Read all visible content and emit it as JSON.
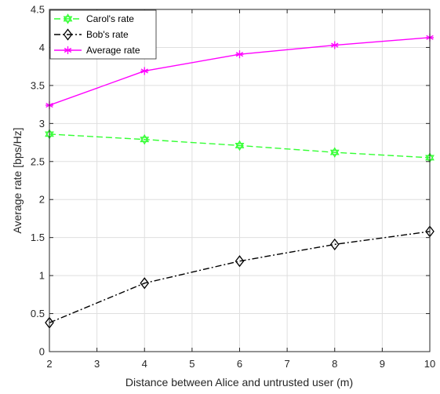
{
  "chart_data": {
    "type": "line",
    "title": "",
    "xlabel": "Distance between Alice and untrusted user (m)",
    "ylabel": "Average rate [bps/Hz]",
    "xlim": [
      2,
      10
    ],
    "ylim": [
      0,
      4.5
    ],
    "xticks": [
      "2",
      "3",
      "4",
      "5",
      "6",
      "7",
      "8",
      "9",
      "10"
    ],
    "yticks": [
      "0",
      "0.5",
      "1",
      "1.5",
      "2",
      "2.5",
      "3",
      "3.5",
      "4",
      "4.5"
    ],
    "grid": true,
    "legend_position": "top-left",
    "x": [
      2,
      4,
      6,
      8,
      10
    ],
    "series": [
      {
        "name": "Carol's rate",
        "values": [
          2.86,
          2.79,
          2.71,
          2.62,
          2.55
        ],
        "color": "#33ff33",
        "line_style": "dashed",
        "marker": "hexagram"
      },
      {
        "name": "Bob's rate",
        "values": [
          0.38,
          0.9,
          1.19,
          1.41,
          1.58
        ],
        "color": "#000000",
        "line_style": "dash-dot",
        "marker": "diamond"
      },
      {
        "name": "Average rate",
        "values": [
          3.24,
          3.69,
          3.91,
          4.03,
          4.13
        ],
        "color": "#ff00ff",
        "line_style": "solid",
        "marker": "asterisk"
      }
    ]
  }
}
